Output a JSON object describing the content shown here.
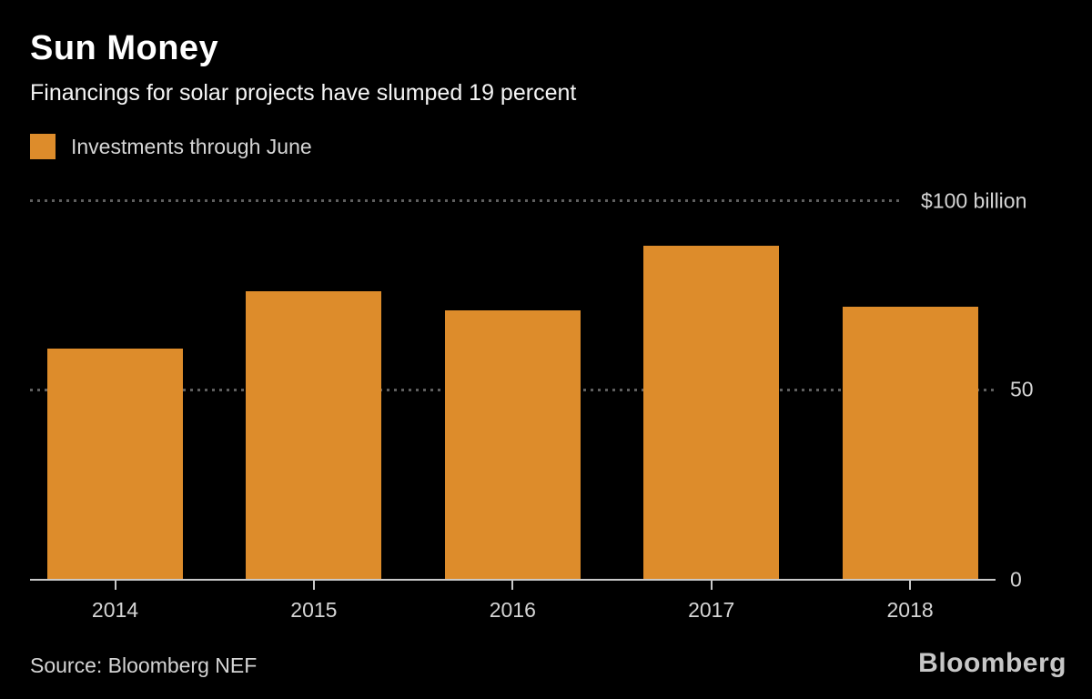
{
  "header": {
    "title": "Sun Money",
    "subtitle": "Financings for solar projects have slumped 19 percent"
  },
  "legend": {
    "label": "Investments through June",
    "swatch_color": "#DD8C2B"
  },
  "chart_data": {
    "type": "bar",
    "title": "Sun Money",
    "subtitle": "Financings for solar projects have slumped 19 percent",
    "series_name": "Investments through June",
    "categories": [
      "2014",
      "2015",
      "2016",
      "2017",
      "2018"
    ],
    "values": [
      61,
      76,
      71,
      88,
      72
    ],
    "unit": "USD billion",
    "xlabel": "",
    "ylabel": "",
    "ylim": [
      0,
      100
    ],
    "yticks": [
      {
        "value": 0,
        "label": "0"
      },
      {
        "value": 50,
        "label": "50"
      },
      {
        "value": 100,
        "label": "$100 billion"
      }
    ],
    "grid": "horizontal-dotted",
    "legend_position": "top-left",
    "bar_color": "#DD8C2B",
    "background_color": "#000000",
    "text_color": "#D5D5D5"
  },
  "footer": {
    "source": "Source: Bloomberg NEF",
    "brand": "Bloomberg"
  }
}
